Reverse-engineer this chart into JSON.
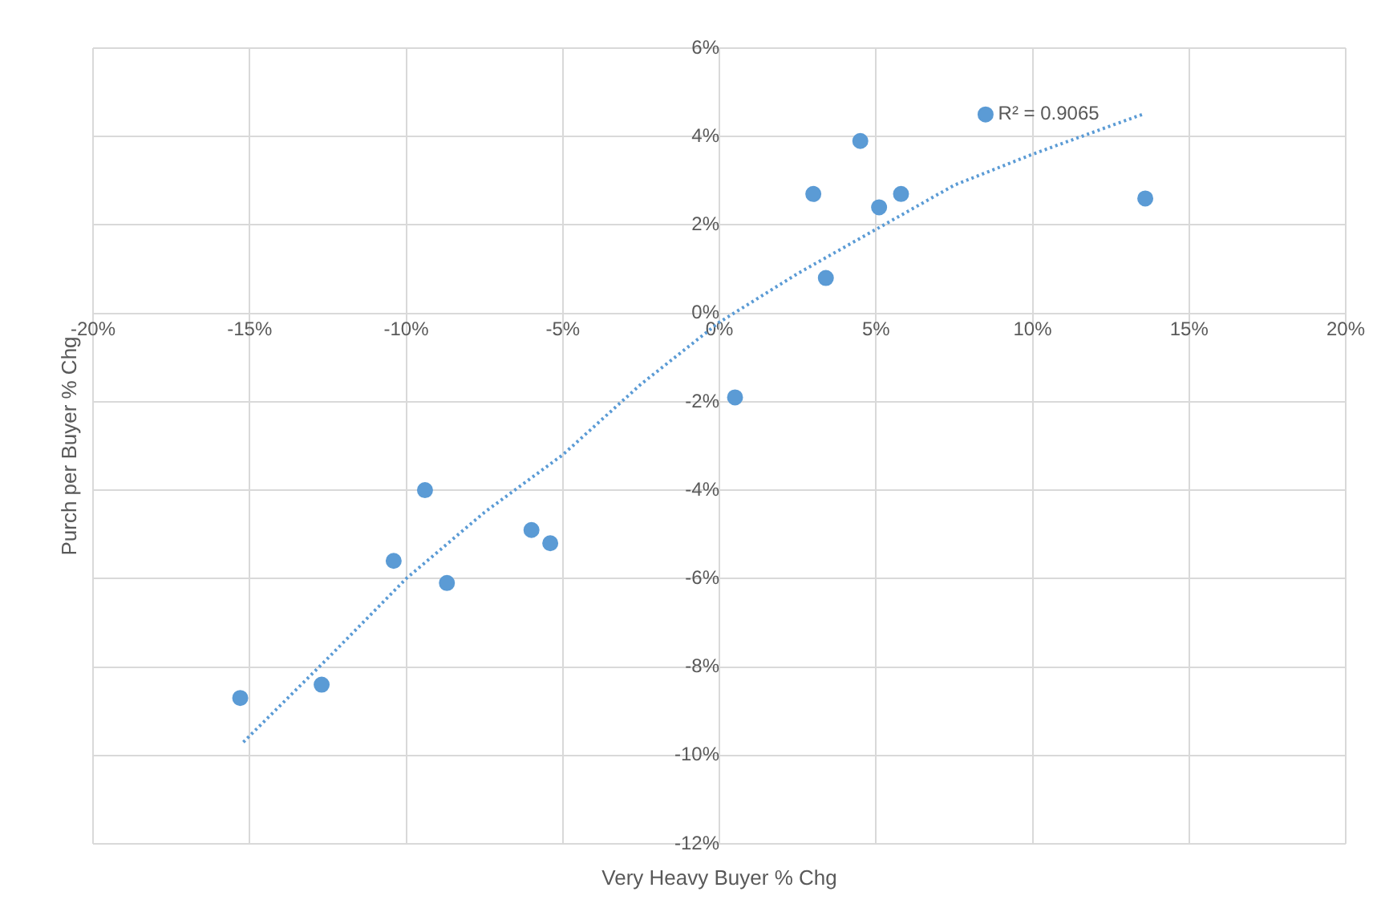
{
  "chart_data": {
    "type": "scatter",
    "xlabel": "Very Heavy Buyer % Chg",
    "ylabel": "Purch per Buyer % Chg",
    "xlim": [
      -20,
      20
    ],
    "ylim": [
      -12,
      6
    ],
    "xticks": [
      {
        "value": -20,
        "label": "-20%"
      },
      {
        "value": -15,
        "label": "-15%"
      },
      {
        "value": -10,
        "label": "-10%"
      },
      {
        "value": -5,
        "label": "-5%"
      },
      {
        "value": 0,
        "label": "0%"
      },
      {
        "value": 5,
        "label": "5%"
      },
      {
        "value": 10,
        "label": "10%"
      },
      {
        "value": 15,
        "label": "15%"
      },
      {
        "value": 20,
        "label": "20%"
      }
    ],
    "yticks": [
      {
        "value": -12,
        "label": "-12%"
      },
      {
        "value": -10,
        "label": "-10%"
      },
      {
        "value": -8,
        "label": "-8%"
      },
      {
        "value": -6,
        "label": "-6%"
      },
      {
        "value": -4,
        "label": "-4%"
      },
      {
        "value": -2,
        "label": "-2%"
      },
      {
        "value": 0,
        "label": "0%"
      },
      {
        "value": 2,
        "label": "2%"
      },
      {
        "value": 4,
        "label": "4%"
      },
      {
        "value": 6,
        "label": "6%"
      }
    ],
    "grid": true,
    "legend": false,
    "marker": "circle",
    "series": [
      {
        "type": "scatter",
        "color": "#5b9bd5",
        "x": [
          -15.3,
          -12.7,
          -10.4,
          -9.4,
          -8.7,
          -6.0,
          -5.4,
          0.5,
          3.0,
          3.4,
          4.5,
          5.1,
          5.8,
          8.5,
          13.6
        ],
        "values": [
          -8.7,
          -8.4,
          -5.6,
          -4.0,
          -6.1,
          -4.9,
          -5.2,
          -1.9,
          2.7,
          0.8,
          3.9,
          2.4,
          2.7,
          4.5,
          2.6
        ]
      },
      {
        "type": "line",
        "color": "#5b9bd5",
        "marker": "none",
        "line_style": "dotted",
        "x": [
          -15.2,
          -12.5,
          -10,
          -7.5,
          -5,
          -2.5,
          0,
          2.5,
          5,
          7.5,
          10,
          13.5
        ],
        "values": [
          -9.7,
          -7.8,
          -6.0,
          -4.5,
          -3.2,
          -1.6,
          -0.2,
          0.9,
          1.9,
          2.9,
          3.6,
          4.5
        ]
      }
    ],
    "annotations": [
      {
        "text": "R² = 0.9065",
        "x": 8.9,
        "y": 4.5
      }
    ]
  }
}
